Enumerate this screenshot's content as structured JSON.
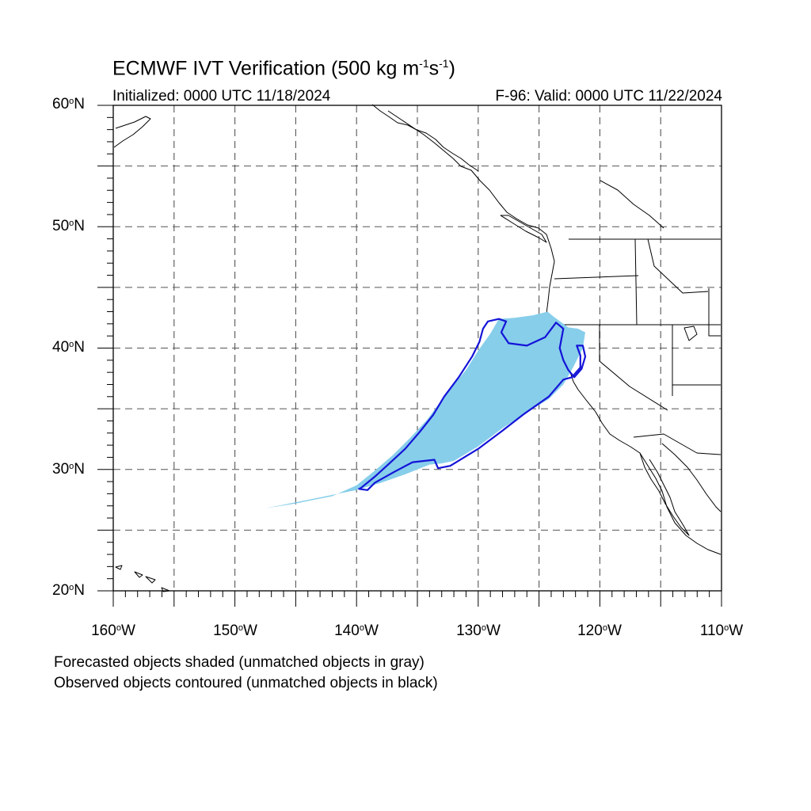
{
  "title": {
    "prefix": "ECMWF IVT Verification (500 kg m",
    "exp1": "-1",
    "mid": "s",
    "exp2": "-1",
    "suffix": ")"
  },
  "subtitle": {
    "initialized": "Initialized: 0000 UTC 11/18/2024",
    "valid": "F-96: Valid: 0000 UTC 11/22/2024"
  },
  "axes": {
    "lat_labels": [
      {
        "value": 60,
        "num": "60",
        "hemi": "N"
      },
      {
        "value": 50,
        "num": "50",
        "hemi": "N"
      },
      {
        "value": 40,
        "num": "40",
        "hemi": "N"
      },
      {
        "value": 30,
        "num": "30",
        "hemi": "N"
      },
      {
        "value": 20,
        "num": "20",
        "hemi": "N"
      }
    ],
    "lon_labels": [
      {
        "value": -160,
        "num": "160",
        "hemi": "W"
      },
      {
        "value": -150,
        "num": "150",
        "hemi": "W"
      },
      {
        "value": -140,
        "num": "140",
        "hemi": "W"
      },
      {
        "value": -130,
        "num": "130",
        "hemi": "W"
      },
      {
        "value": -120,
        "num": "120",
        "hemi": "W"
      },
      {
        "value": -110,
        "num": "110",
        "hemi": "W"
      }
    ]
  },
  "legend": {
    "line1": "Forecasted objects shaded (unmatched objects in gray)",
    "line2": "Observed objects contoured (unmatched objects in black)"
  },
  "colors": {
    "forecast_fill": "#87ceeb",
    "observed_contour": "#1414d8",
    "coast": "#000000",
    "grid": "#555555"
  },
  "map_data": {
    "extent": {
      "lon_min": -160,
      "lon_max": -110,
      "lat_min": 20,
      "lat_max": 60
    },
    "grid": {
      "spacing_deg": 5,
      "style": "dashed"
    },
    "forecast_object": [
      [
        -147.5,
        26.8
      ],
      [
        -146,
        27.1
      ],
      [
        -144,
        27.5
      ],
      [
        -142,
        27.9
      ],
      [
        -140,
        28.3
      ],
      [
        -138,
        28.9
      ],
      [
        -136,
        29.6
      ],
      [
        -134,
        30.4
      ],
      [
        -133,
        30.5
      ],
      [
        -132,
        30.7
      ],
      [
        -130,
        31.9
      ],
      [
        -128,
        33.4
      ],
      [
        -126,
        34.7
      ],
      [
        -124.2,
        35.8
      ],
      [
        -123,
        37
      ],
      [
        -122.2,
        38.4
      ],
      [
        -121.4,
        40
      ],
      [
        -121.2,
        41.3
      ],
      [
        -121.8,
        41.6
      ],
      [
        -122.6,
        41.7
      ],
      [
        -123.8,
        42.6
      ],
      [
        -124.3,
        43
      ],
      [
        -125.5,
        42.7
      ],
      [
        -127,
        42.5
      ],
      [
        -128.3,
        42.4
      ],
      [
        -129,
        41.2
      ],
      [
        -130,
        39.8
      ],
      [
        -131,
        38.2
      ],
      [
        -132.5,
        36.4
      ],
      [
        -134.2,
        34.1
      ],
      [
        -135.5,
        32.7
      ],
      [
        -137,
        31.2
      ],
      [
        -138.5,
        29.9
      ],
      [
        -140,
        28.7
      ],
      [
        -142,
        27.8
      ],
      [
        -145,
        27.2
      ],
      [
        -147.5,
        26.8
      ]
    ],
    "observed_object": [
      [
        -139.6,
        28.5
      ],
      [
        -138.5,
        29.4
      ],
      [
        -137.4,
        30.4
      ],
      [
        -136,
        31.7
      ],
      [
        -134.8,
        33.1
      ],
      [
        -133.7,
        34.5
      ],
      [
        -132.8,
        36
      ],
      [
        -131.6,
        37.6
      ],
      [
        -130.5,
        39.3
      ],
      [
        -129.9,
        40.5
      ],
      [
        -129.6,
        41.6
      ],
      [
        -129.2,
        42.2
      ],
      [
        -128.3,
        42.4
      ],
      [
        -127.7,
        42.2
      ],
      [
        -128.1,
        41.3
      ],
      [
        -127.5,
        40.4
      ],
      [
        -126,
        40.2
      ],
      [
        -124.5,
        40.9
      ],
      [
        -123.6,
        42.1
      ],
      [
        -123,
        41.6
      ],
      [
        -123.3,
        40
      ],
      [
        -123,
        39
      ],
      [
        -122.6,
        38.2
      ],
      [
        -122.1,
        37.6
      ],
      [
        -121.5,
        38.3
      ],
      [
        -121.2,
        39.3
      ],
      [
        -121.4,
        40.2
      ],
      [
        -121.9,
        40.2
      ],
      [
        -121.6,
        39.4
      ],
      [
        -121.6,
        38.4
      ],
      [
        -122.3,
        37.6
      ],
      [
        -123,
        37.4
      ],
      [
        -124.2,
        36
      ],
      [
        -126.2,
        34.6
      ],
      [
        -128,
        33.2
      ],
      [
        -130,
        31.7
      ],
      [
        -132.3,
        30.3
      ],
      [
        -133.3,
        30.1
      ],
      [
        -133.6,
        30.8
      ],
      [
        -135.4,
        30.6
      ],
      [
        -136.9,
        29.8
      ],
      [
        -138.5,
        28.9
      ],
      [
        -139.1,
        28.3
      ],
      [
        -139.8,
        28.4
      ]
    ]
  }
}
